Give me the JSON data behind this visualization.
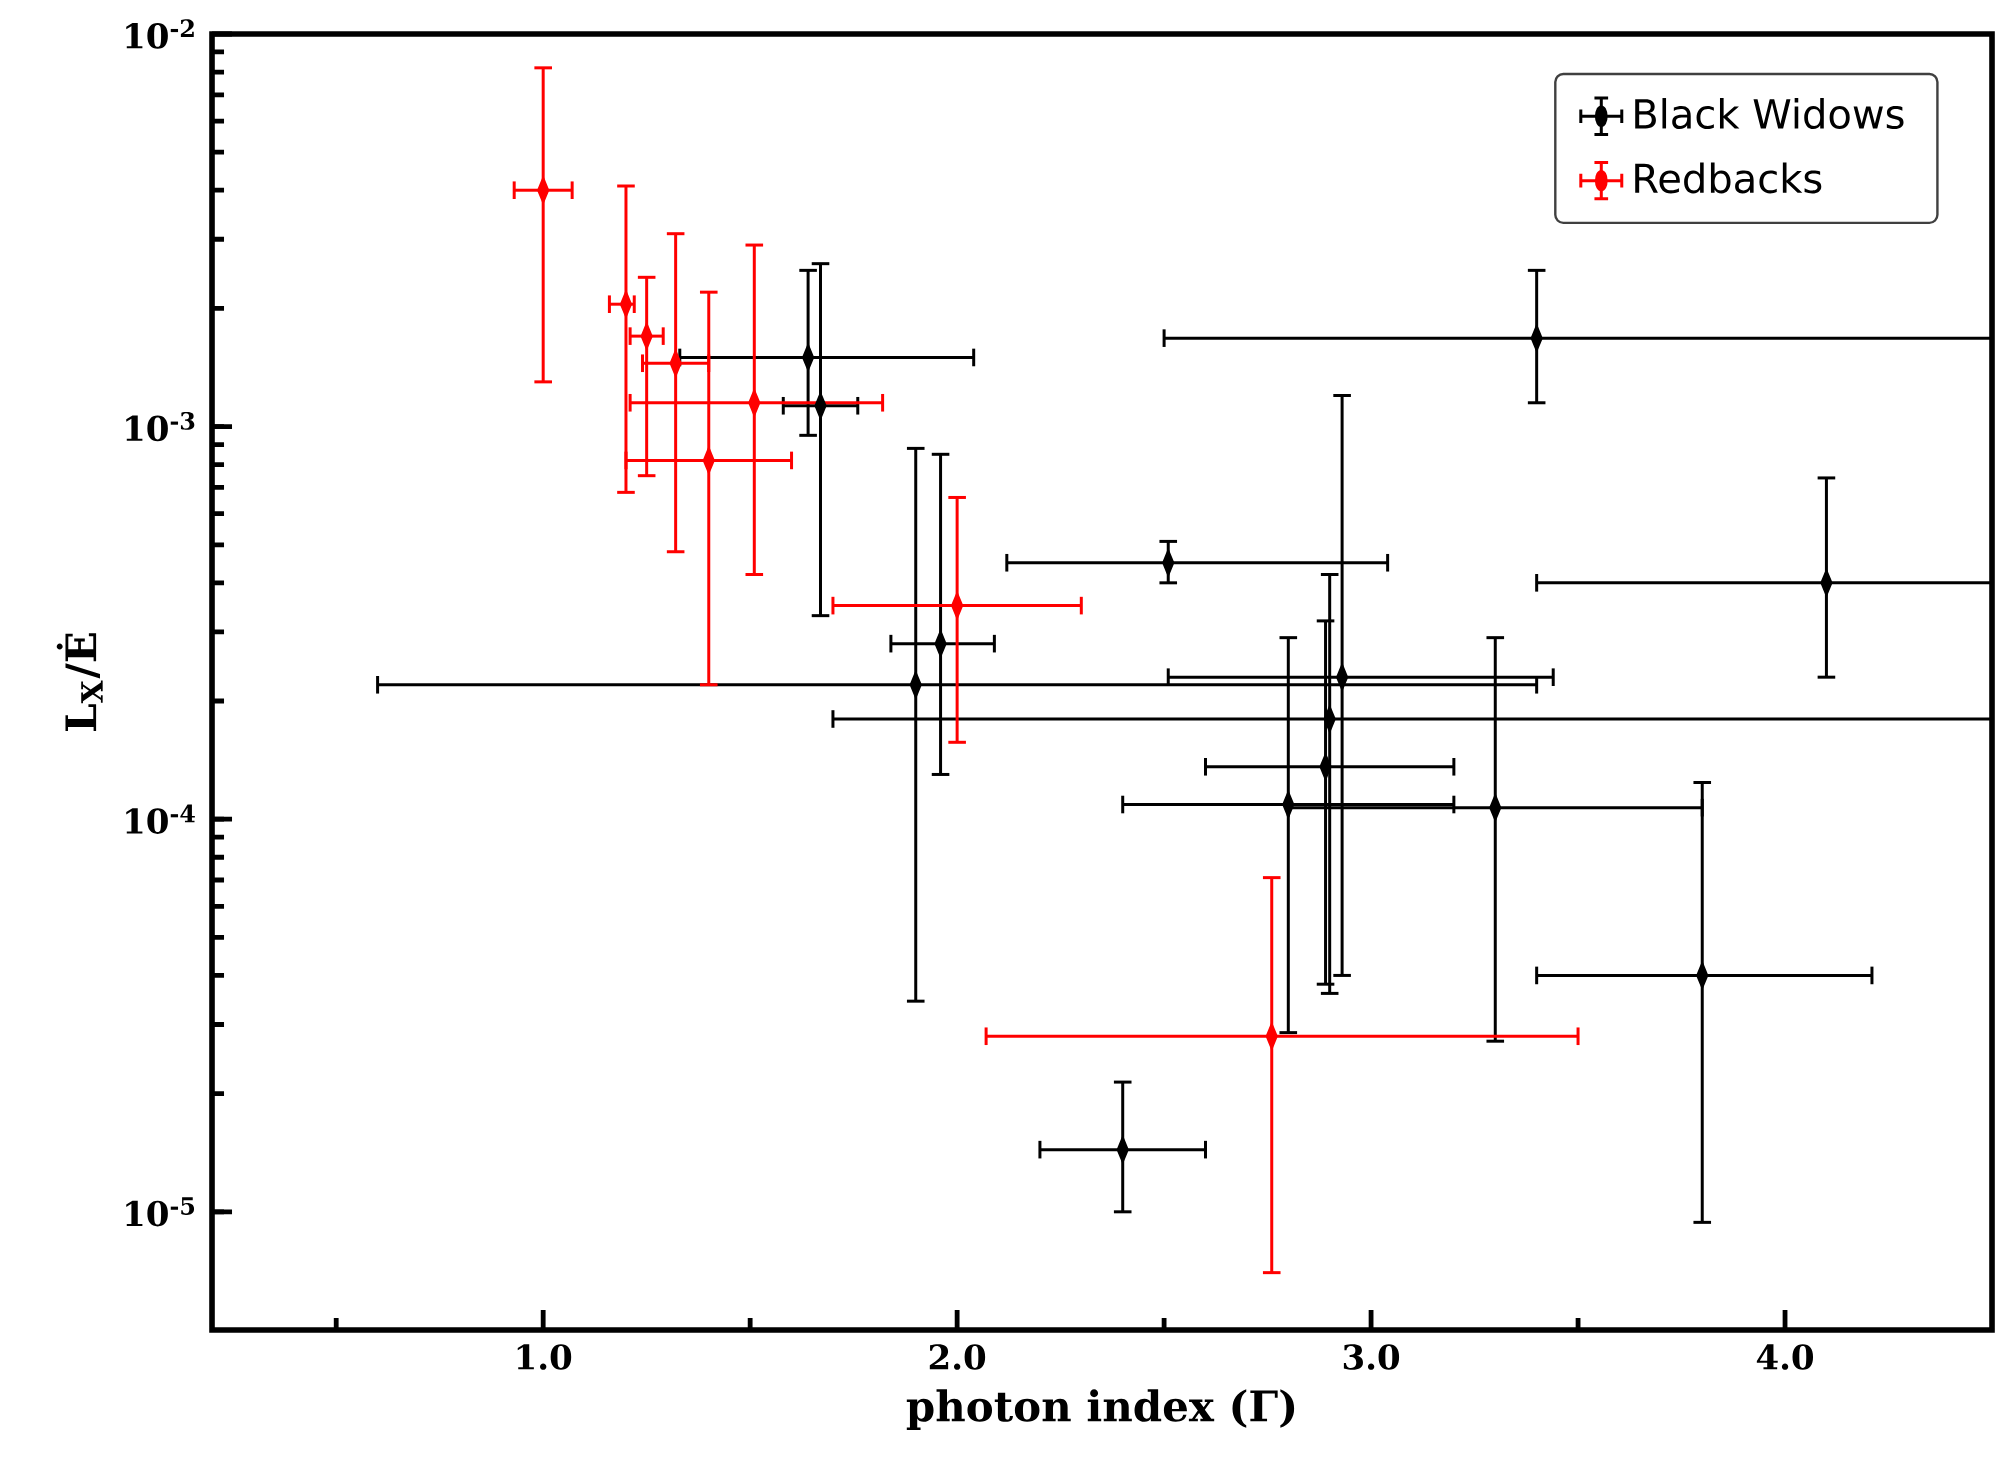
{
  "chart_data": {
    "type": "scatter",
    "xlabel": "photon index (Γ)",
    "ylabel": "L$_{X}$/Ė",
    "xlim": [
      0.2,
      4.5
    ],
    "ylim": [
      5e-06,
      0.01
    ],
    "log": "y",
    "marker": "diamond",
    "legend": "top right",
    "xticks": [
      {
        "value": 0.5,
        "label": null
      },
      {
        "value": 1.0,
        "label": "1.0"
      },
      {
        "value": 1.5,
        "label": null
      },
      {
        "value": 2.0,
        "label": "2.0"
      },
      {
        "value": 2.5,
        "label": null
      },
      {
        "value": 3.0,
        "label": "3.0"
      },
      {
        "value": 3.5,
        "label": null
      },
      {
        "value": 4.0,
        "label": "4.0"
      }
    ],
    "yticks": [
      {
        "value": 1e-05,
        "label": "10$^{-5}$"
      },
      {
        "value": 0.0001,
        "label": "10$^{-4}$"
      },
      {
        "value": 0.001,
        "label": "10$^{-3}$"
      },
      {
        "value": 0.01,
        "label": "10$^{-2}$"
      }
    ],
    "series": [
      {
        "name": "Black Widows",
        "color": "#000000",
        "x": [
          1.64,
          1.67,
          1.9,
          1.96,
          2.51,
          3.4,
          4.1,
          2.93,
          2.9,
          2.89,
          2.8,
          3.3,
          3.8,
          2.4
        ],
        "values": [
          0.0015,
          0.00113,
          0.00022,
          0.00028,
          0.00045,
          0.00168,
          0.0004,
          0.00023,
          0.00018,
          0.000136,
          0.000109,
          0.000107,
          4e-05,
          1.44e-05
        ],
        "errors": [
          [
            0.00095,
            0.0025
          ],
          [
            0.00033,
            0.0026
          ],
          [
            3.44e-05,
            0.00088
          ],
          [
            0.00013,
            0.00085
          ],
          [
            0.0004,
            0.00051
          ],
          [
            0.00115,
            0.0025
          ],
          [
            0.00023,
            0.00074
          ],
          [
            4e-05,
            0.0012
          ],
          [
            3.6e-05,
            0.00042
          ],
          [
            3.8e-05,
            0.00032
          ],
          [
            2.86e-05,
            0.00029
          ],
          [
            2.72e-05,
            0.00029
          ],
          [
            9.4e-06,
            0.000124
          ],
          [
            1e-05,
            2.14e-05
          ]
        ],
        "xerrors": [
          [
            1.33,
            2.04
          ],
          [
            1.58,
            1.76
          ],
          [
            0.6,
            3.4
          ],
          [
            1.84,
            2.09
          ],
          [
            2.12,
            3.04
          ],
          [
            2.5,
            4.5
          ],
          [
            3.4,
            4.5
          ],
          [
            2.51,
            3.44
          ],
          [
            1.7,
            4.5
          ],
          [
            2.6,
            3.2
          ],
          [
            2.4,
            3.2
          ],
          [
            2.8,
            3.8
          ],
          [
            3.4,
            4.21
          ],
          [
            2.2,
            2.6
          ]
        ]
      },
      {
        "name": "Redbacks",
        "color": "#ff0000",
        "x": [
          1.0,
          1.2,
          1.25,
          1.32,
          1.51,
          1.4,
          2.0,
          2.76
        ],
        "values": [
          0.004,
          0.00205,
          0.0017,
          0.00145,
          0.00115,
          0.00082,
          0.00035,
          2.8e-05
        ],
        "errors": [
          [
            0.0013,
            0.0082
          ],
          [
            0.00068,
            0.0041
          ],
          [
            0.00075,
            0.0024
          ],
          [
            0.00048,
            0.0031
          ],
          [
            0.00042,
            0.0029
          ],
          [
            0.00022,
            0.0022
          ],
          [
            0.000157,
            0.00066
          ],
          [
            7e-06,
            7.1e-05
          ]
        ],
        "xerrors": [
          [
            0.93,
            1.07
          ],
          [
            1.16,
            1.22
          ],
          [
            1.21,
            1.29
          ],
          [
            1.24,
            1.4
          ],
          [
            1.21,
            1.82
          ],
          [
            1.2,
            1.6
          ],
          [
            1.7,
            2.3
          ],
          [
            2.07,
            3.5
          ]
        ]
      }
    ]
  }
}
